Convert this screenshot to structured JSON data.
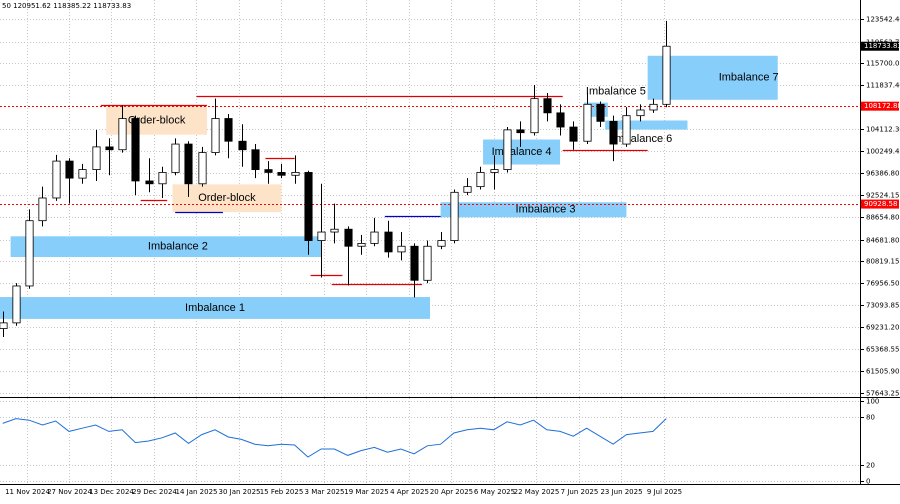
{
  "header": "50 120951.62 118385.22 118733.83",
  "chart_data": [
    {
      "type": "candlestick",
      "xlim": [
        "1 Nov 2024",
        "21 Sep 2025"
      ],
      "xticks": [
        "11 Nov 2024",
        "27 Nov 2024",
        "13 Dec 2024",
        "29 Dec 2024",
        "14 Jan 2025",
        "30 Jan 2025",
        "15 Feb 2025",
        "3 Mar 2025",
        "19 Mar 2025",
        "4 Apr 2025",
        "20 Apr 2025",
        "6 May 2025",
        "22 May 2025",
        "7 Jun 2025",
        "23 Jun 2025",
        "9 Jul 2025"
      ],
      "ylim": [
        56941,
        126878
      ],
      "yticks": [
        {
          "value": 123542.4,
          "label": "123542.40"
        },
        {
          "value": 119562.7,
          "label": "119562.70"
        },
        115700.05,
        {
          "value": 111837.4,
          "label": "111837.40"
        },
        {
          "value": 104112.3,
          "label": "104112.30"
        },
        100249.45,
        {
          "value": 96386.8,
          "label": "96386.80"
        },
        92524.15,
        {
          "value": 88654.8,
          "label": "88654.80"
        },
        {
          "value": 84681.8,
          "label": "84681.80"
        },
        80819.15,
        {
          "value": 76956.5,
          "label": "76956.50"
        },
        73093.85,
        {
          "value": 69231.2,
          "label": "69231.20"
        },
        65368.55,
        {
          "value": 61505.9,
          "label": "61505.90"
        },
        57643.25
      ],
      "grid": true,
      "x": [
        "2 Nov 2024",
        "7 Nov 2024",
        "12 Nov 2024",
        "17 Nov 2024",
        "22 Nov 2024",
        "27 Nov 2024",
        "2 Dec 2024",
        "7 Dec 2024",
        "12 Dec 2024",
        "17 Dec 2024",
        "22 Dec 2024",
        "27 Dec 2024",
        "1 Jan 2025",
        "6 Jan 2025",
        "11 Jan 2025",
        "16 Jan 2025",
        "21 Jan 2025",
        "26 Jan 2025",
        "31 Jan 2025",
        "5 Feb 2025",
        "10 Feb 2025",
        "15 Feb 2025",
        "20 Feb 2025",
        "25 Feb 2025",
        "2 Mar 2025",
        "7 Mar 2025",
        "12 Mar 2025",
        "17 Mar 2025",
        "22 Mar 2025",
        "27 Mar 2025",
        "1 Apr 2025",
        "6 Apr 2025",
        "11 Apr 2025",
        "16 Apr 2025",
        "21 Apr 2025",
        "26 Apr 2025",
        "1 May 2025",
        "6 May 2025",
        "11 May 2025",
        "16 May 2025",
        "21 May 2025",
        "26 May 2025",
        "31 May 2025",
        "5 Jun 2025",
        "10 Jun 2025",
        "15 Jun 2025",
        "20 Jun 2025",
        "25 Jun 2025",
        "30 Jun 2025",
        "5 Jul 2025",
        "10 Jul 2025"
      ],
      "open": [
        69000,
        70000,
        76500,
        88000,
        92000,
        98500,
        95500,
        97000,
        101000,
        100500,
        106000,
        95000,
        94500,
        96500,
        101500,
        94500,
        100000,
        106000,
        102000,
        100500,
        97000,
        96500,
        96000,
        96500,
        84500,
        86000,
        86500,
        83500,
        84000,
        86000,
        82500,
        83500,
        77500,
        83500,
        84500,
        93000,
        94000,
        96500,
        97000,
        104000,
        103500,
        109500,
        107000,
        104500,
        102000,
        108500,
        105500,
        101500,
        106500,
        107500,
        108500
      ],
      "high": [
        72000,
        77000,
        90000,
        94000,
        99600,
        99000,
        98000,
        104000,
        102500,
        108300,
        106500,
        99000,
        97500,
        102500,
        102000,
        101000,
        109500,
        106800,
        105000,
        101500,
        98500,
        98000,
        99500,
        96800,
        94500,
        91000,
        87000,
        85500,
        88500,
        88000,
        86000,
        84000,
        84500,
        86000,
        93500,
        95500,
        97500,
        99500,
        104500,
        105500,
        111900,
        110500,
        108500,
        105500,
        110500,
        109000,
        106500,
        108000,
        108500,
        109500,
        123200
      ],
      "low": [
        67500,
        69500,
        76000,
        87000,
        91500,
        91000,
        94500,
        95000,
        96000,
        100000,
        92500,
        93000,
        92000,
        96000,
        92200,
        94000,
        99500,
        99000,
        97500,
        95500,
        94500,
        95500,
        94500,
        82000,
        78000,
        84000,
        76600,
        82000,
        83500,
        81500,
        81000,
        74500,
        77000,
        83000,
        84000,
        92500,
        93500,
        93500,
        96500,
        101000,
        103000,
        105500,
        103000,
        100500,
        101500,
        104500,
        98500,
        101000,
        105500,
        107000,
        108000
      ],
      "close": [
        70000,
        76500,
        88000,
        92000,
        98500,
        95500,
        97000,
        101000,
        100500,
        106000,
        95000,
        94500,
        96500,
        101500,
        94500,
        100000,
        106000,
        102000,
        100500,
        97000,
        96500,
        96000,
        96500,
        84500,
        86000,
        86500,
        83500,
        84000,
        86000,
        82500,
        83500,
        77500,
        83500,
        84500,
        93000,
        94000,
        96500,
        97000,
        104000,
        103500,
        109500,
        107000,
        104500,
        102000,
        108500,
        105500,
        101500,
        106500,
        107500,
        108500,
        118733.83
      ],
      "price_lines": [
        {
          "value": 108172.88,
          "color": "#ff0000"
        },
        {
          "value": 90928.58,
          "color": "#ff0000"
        }
      ],
      "levels": [
        {
          "value": 108300,
          "start": "9 Dec 2024",
          "end": "18 Jan 2025",
          "color": "#e00000"
        },
        {
          "value": 110000,
          "start": "14 Jan 2025",
          "end": "1 Jun 2025",
          "color": "#e00000"
        },
        {
          "value": 99100,
          "start": "9 Feb 2025",
          "end": "20 Feb 2025",
          "color": "#e00000"
        },
        {
          "value": 78500,
          "start": "26 Feb 2025",
          "end": "10 Mar 2025",
          "color": "#e00000"
        },
        {
          "value": 76800,
          "start": "6 Mar 2025",
          "end": "9 Apr 2025",
          "color": "#e00000"
        },
        {
          "value": 100500,
          "start": "1 Jun 2025",
          "end": "3 Jul 2025",
          "color": "#e00000"
        },
        {
          "value": 91700,
          "start": "24 Dec 2024",
          "end": "3 Jan 2025",
          "color": "#e00000"
        },
        {
          "value": 89500,
          "start": "6 Jan 2025",
          "end": "24 Jan 2025",
          "color": "#0000cc"
        },
        {
          "value": 88800,
          "start": "26 Mar 2025",
          "end": "16 Apr 2025",
          "color": "#0000cc"
        }
      ],
      "zones": [
        {
          "label": "Imbalance 1",
          "low": 70700,
          "high": 74550,
          "start": "1 Nov 2024",
          "end": "12 Apr 2025",
          "color": "#87cefa"
        },
        {
          "label": "Imbalance 2",
          "low": 81600,
          "high": 85250,
          "start": "5 Nov 2024",
          "end": "2 Mar 2025",
          "color": "#87cefa"
        },
        {
          "label": "Imbalance 3",
          "low": 88600,
          "high": 91250,
          "start": "16 Apr 2025",
          "end": "25 Jun 2025",
          "color": "#87cefa"
        },
        {
          "label": "Imbalance 4",
          "low": 97900,
          "high": 102300,
          "start": "2 May 2025",
          "end": "31 May 2025",
          "color": "#87cefa"
        },
        {
          "label": "Imbalance 5",
          "low": 106300,
          "high": 108800,
          "start": "9 Jun 2025",
          "end": "18 Jun 2025",
          "color": "#87cefa"
        },
        {
          "label": "Imbalance 6",
          "low": 104050,
          "high": 105650,
          "start": "17 Jun 2025",
          "end": "18 Jul 2025",
          "color": "#87cefa"
        },
        {
          "label": "Imbalance 7",
          "low": 109300,
          "high": 117050,
          "start": "3 Jul 2025",
          "end": "21 Aug 2025",
          "color": "#87cefa"
        },
        {
          "label": "Order-block",
          "low": 103150,
          "high": 108100,
          "start": "11 Dec 2024",
          "end": "18 Jan 2025",
          "color": "#fde3c8"
        },
        {
          "label": "Order-block",
          "low": 89500,
          "high": 94400,
          "start": "5 Jan 2025",
          "end": "15 Feb 2025",
          "color": "#fde3c8"
        }
      ]
    },
    {
      "type": "line",
      "ylim": [
        0,
        100
      ],
      "yticks": [
        100,
        80,
        20,
        0
      ],
      "x": [
        "2 Nov 2024",
        "7 Nov 2024",
        "12 Nov 2024",
        "17 Nov 2024",
        "22 Nov 2024",
        "27 Nov 2024",
        "2 Dec 2024",
        "7 Dec 2024",
        "12 Dec 2024",
        "17 Dec 2024",
        "22 Dec 2024",
        "27 Dec 2024",
        "1 Jan 2025",
        "6 Jan 2025",
        "11 Jan 2025",
        "16 Jan 2025",
        "21 Jan 2025",
        "26 Jan 2025",
        "31 Jan 2025",
        "5 Feb 2025",
        "10 Feb 2025",
        "15 Feb 2025",
        "20 Feb 2025",
        "25 Feb 2025",
        "2 Mar 2025",
        "7 Mar 2025",
        "12 Mar 2025",
        "17 Mar 2025",
        "22 Mar 2025",
        "27 Mar 2025",
        "1 Apr 2025",
        "6 Apr 2025",
        "11 Apr 2025",
        "16 Apr 2025",
        "21 Apr 2025",
        "26 Apr 2025",
        "1 May 2025",
        "6 May 2025",
        "11 May 2025",
        "16 May 2025",
        "21 May 2025",
        "26 May 2025",
        "31 May 2025",
        "5 Jun 2025",
        "10 Jun 2025",
        "15 Jun 2025",
        "20 Jun 2025",
        "25 Jun 2025",
        "30 Jun 2025",
        "5 Jul 2025",
        "10 Jul 2025"
      ],
      "series": [
        {
          "color": "#1e6fd9",
          "values": [
            72,
            78,
            76,
            70,
            75,
            62,
            66,
            70,
            62,
            64,
            48,
            50,
            54,
            60,
            47,
            58,
            64,
            55,
            52,
            46,
            44,
            46,
            45,
            30,
            40,
            40,
            32,
            38,
            42,
            36,
            40,
            34,
            44,
            46,
            60,
            64,
            66,
            64,
            74,
            70,
            76,
            64,
            62,
            56,
            66,
            56,
            46,
            58,
            60,
            62,
            78
          ]
        }
      ]
    }
  ]
}
